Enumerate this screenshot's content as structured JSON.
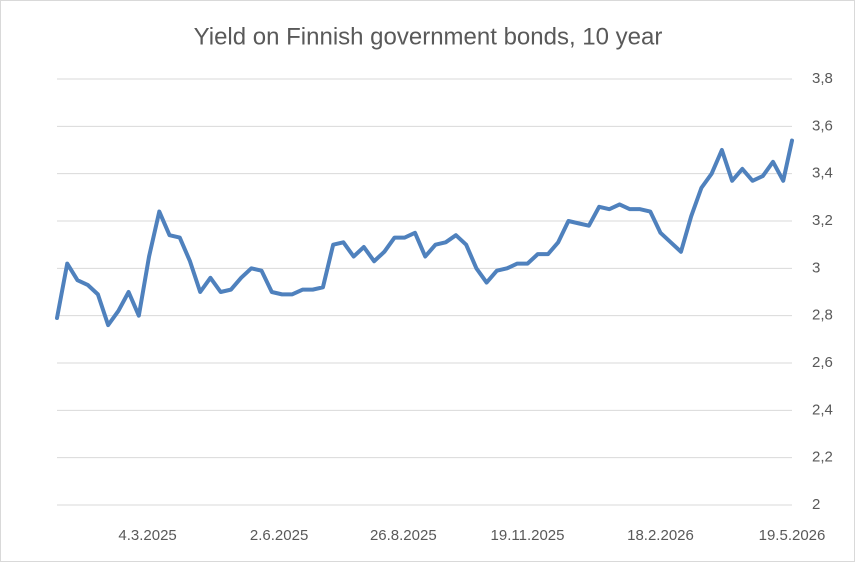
{
  "chart_data": {
    "type": "line",
    "title": "Yield on Finnish government bonds, 10 year",
    "x": [
      "1.1.2025",
      "8.1.2025",
      "15.1.2025",
      "22.1.2025",
      "29.1.2025",
      "5.2.2025",
      "12.2.2025",
      "19.2.2025",
      "26.2.2025",
      "5.3.2025",
      "12.3.2025",
      "19.3.2025",
      "26.3.2025",
      "2.4.2025",
      "9.4.2025",
      "16.4.2025",
      "23.4.2025",
      "30.4.2025",
      "7.5.2025",
      "14.5.2025",
      "21.5.2025",
      "28.5.2025",
      "4.6.2025",
      "11.6.2025",
      "18.6.2025",
      "25.6.2025",
      "2.7.2025",
      "9.7.2025",
      "16.7.2025",
      "23.7.2025",
      "30.7.2025",
      "6.8.2025",
      "13.8.2025",
      "20.8.2025",
      "27.8.2025",
      "3.9.2025",
      "10.9.2025",
      "17.9.2025",
      "24.9.2025",
      "1.10.2025",
      "8.10.2025",
      "15.10.2025",
      "22.10.2025",
      "29.10.2025",
      "5.11.2025",
      "12.11.2025",
      "19.11.2025",
      "26.11.2025",
      "3.12.2025",
      "10.12.2025",
      "17.12.2025",
      "24.12.2025",
      "31.12.2025",
      "7.1.2026",
      "14.1.2026",
      "21.1.2026",
      "28.1.2026",
      "4.2.2026",
      "11.2.2026",
      "18.2.2026",
      "25.2.2026",
      "4.3.2026",
      "11.3.2026",
      "18.3.2026",
      "25.3.2026",
      "1.4.2026",
      "8.4.2026",
      "15.4.2026",
      "22.4.2026",
      "29.4.2026",
      "6.5.2026",
      "13.5.2026",
      "19.5.2026"
    ],
    "values": [
      2.79,
      3.02,
      2.95,
      2.93,
      2.89,
      2.76,
      2.82,
      2.9,
      2.8,
      3.05,
      3.24,
      3.14,
      3.13,
      3.03,
      2.9,
      2.96,
      2.9,
      2.91,
      2.96,
      3.0,
      2.99,
      2.9,
      2.89,
      2.89,
      2.91,
      2.91,
      2.92,
      3.1,
      3.11,
      3.05,
      3.09,
      3.03,
      3.07,
      3.13,
      3.13,
      3.15,
      3.05,
      3.1,
      3.11,
      3.14,
      3.1,
      3.0,
      2.94,
      2.99,
      3.0,
      3.02,
      3.02,
      3.06,
      3.06,
      3.11,
      3.2,
      3.19,
      3.18,
      3.26,
      3.25,
      3.27,
      3.25,
      3.25,
      3.24,
      3.15,
      3.11,
      3.07,
      3.22,
      3.34,
      3.4,
      3.5,
      3.37,
      3.42,
      3.37,
      3.39,
      3.45,
      3.37,
      3.54
    ],
    "color": "#4f81bd",
    "xlim": [
      "1.1.2025",
      "19.5.2026"
    ],
    "xticks": [
      "4.3.2025",
      "2.6.2025",
      "26.8.2025",
      "19.11.2025",
      "18.2.2026",
      "19.5.2026"
    ],
    "ylim": [
      2,
      3.8
    ],
    "yticks": [
      2,
      {
        "value": 2.2,
        "label": "2,2"
      },
      {
        "value": 2.4,
        "label": "2,4"
      },
      {
        "value": 2.6,
        "label": "2,6"
      },
      {
        "value": 2.8,
        "label": "2,8"
      },
      3,
      {
        "value": 3.2,
        "label": "3,2"
      },
      {
        "value": 3.4,
        "label": "3,4"
      },
      {
        "value": 3.6,
        "label": "3,6"
      },
      {
        "value": 3.8,
        "label": "3,8"
      }
    ],
    "grid": true
  }
}
